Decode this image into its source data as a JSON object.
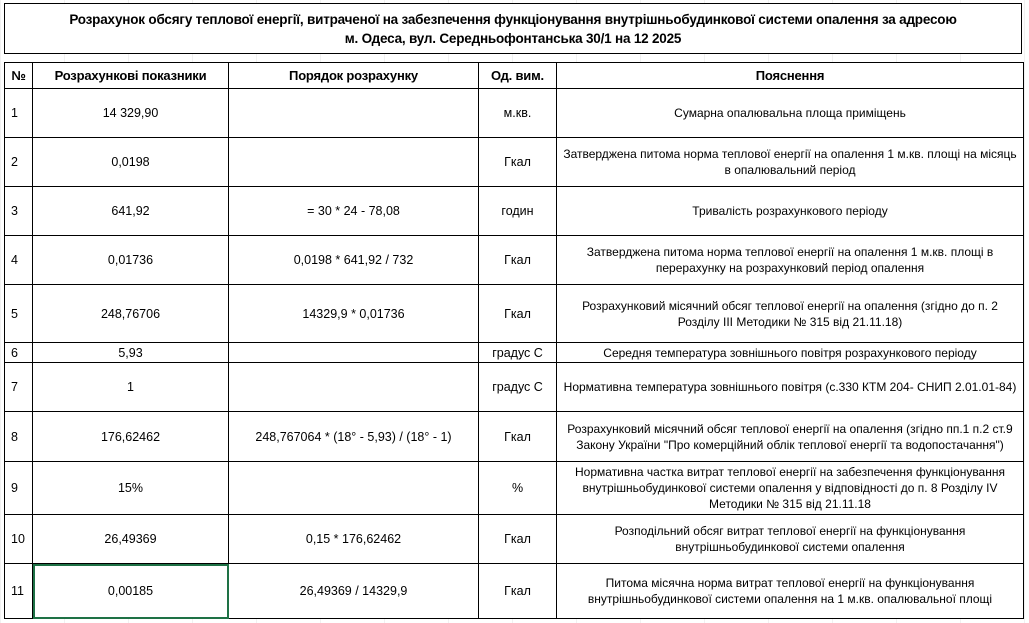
{
  "title": {
    "line1": "Розрахунок обсягу теплової енергії, витраченої на забезпечення функціонування внутрішньобудинкової системи опалення за адресою",
    "line2": "м. Одеса, вул. Середньофонтанська 30/1  на 12 2025"
  },
  "headers": [
    "№",
    "Розрахункові показники",
    "Порядок розрахунку",
    "Од. вим.",
    "Пояснення"
  ],
  "rows": [
    {
      "n": "1",
      "value": "14 329,90",
      "formula": "",
      "unit": "м.кв.",
      "note": "Сумарна опалювальна площа приміщень"
    },
    {
      "n": "2",
      "value": "0,0198",
      "formula": "",
      "unit": "Гкал",
      "note": "Затверджена питома норма теплової енергії на опалення 1 м.кв. площі на місяць в опалювальний період"
    },
    {
      "n": "3",
      "value": "641,92",
      "formula": "= 30 * 24 - 78,08",
      "unit": "годин",
      "note": "Тривалість розрахункового періоду"
    },
    {
      "n": "4",
      "value": "0,01736",
      "formula": "0,0198 * 641,92 / 732",
      "unit": "Гкал",
      "note": "Затверджена питома норма теплової енергії на опалення 1 м.кв. площі в перерахунку на розрахунковий період опалення"
    },
    {
      "n": "5",
      "value": "248,76706",
      "formula": "14329,9 * 0,01736",
      "unit": "Гкал",
      "note": "Розрахунковий місячний обсяг теплової енергії на опалення (згідно до п. 2 Розділу III Методики № 315 від 21.11.18)"
    },
    {
      "n": "6",
      "value": "5,93",
      "formula": "",
      "unit": "градус С",
      "note": "Середня температура зовнішнього повітря розрахункового періоду"
    },
    {
      "n": "7",
      "value": "1",
      "formula": "",
      "unit": "градус С",
      "note": "Нормативна температура зовнішнього повітря (с.330 КТМ 204-  СНИП 2.01.01-84)"
    },
    {
      "n": "8",
      "value": "176,62462",
      "formula": "248,767064 * (18° - 5,93) / (18° - 1)",
      "unit": "Гкал",
      "note": "Розрахунковий місячний обсяг теплової енергії на опалення (згідно пп.1 п.2 ст.9 Закону України \"Про комерційний облік теплової енергії та водопостачання\")"
    },
    {
      "n": "9",
      "value": "15%",
      "formula": "",
      "unit": "%",
      "note": "Нормативна частка витрат теплової енергії на забезпечення функціонування внутрішньобудинкової системи опалення у відповідності до п. 8 Розділу IV Методики № 315 від 21.11.18"
    },
    {
      "n": "10",
      "value": "26,49369",
      "formula": "0,15 * 176,62462",
      "unit": "Гкал",
      "note": "Розподільний обсяг витрат теплової енергії на функціонування внутрішньобудинкової системи опалення"
    },
    {
      "n": "11",
      "value": "0,00185",
      "formula": "26,49369 / 14329,9",
      "unit": "Гкал",
      "note": "Питома місячна норма витрат теплової енергії на функціонування внутрішньобудинкової системи опалення на 1 м.кв. опалювальної площі"
    }
  ],
  "colors": {
    "selection": "#1e7145",
    "border": "#000000"
  }
}
